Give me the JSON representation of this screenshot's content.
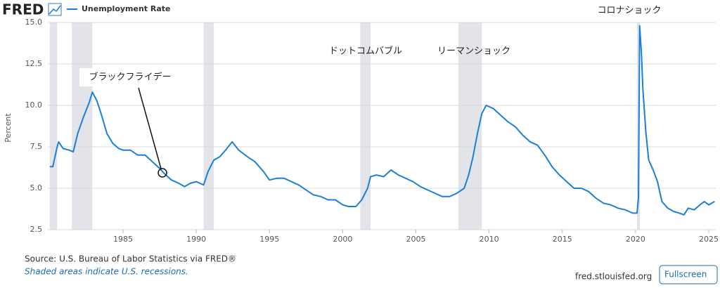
{
  "header": {
    "logo": "FRED"
  },
  "chart_data": {
    "type": "line",
    "y_label": "Percent",
    "series": [
      {
        "name": "Unemployment Rate",
        "color": "#1c7fd8",
        "x": [
          1980.0,
          1980.2,
          1980.5,
          1980.6,
          1980.9,
          1981.3,
          1981.6,
          1981.9,
          1982.3,
          1982.7,
          1982.9,
          1983.2,
          1983.5,
          1983.9,
          1984.3,
          1984.7,
          1985.0,
          1985.5,
          1986.0,
          1986.5,
          1987.0,
          1987.5,
          1987.8,
          1988.3,
          1988.8,
          1989.2,
          1989.6,
          1990.0,
          1990.5,
          1990.8,
          1991.2,
          1991.6,
          1992.0,
          1992.45,
          1992.9,
          1993.5,
          1994.0,
          1994.6,
          1995.0,
          1995.5,
          1996.0,
          1996.5,
          1997.0,
          1997.5,
          1998.0,
          1998.5,
          1999.0,
          1999.5,
          2000.0,
          2000.4,
          2000.9,
          2001.3,
          2001.7,
          2001.9,
          2002.3,
          2002.8,
          2003.3,
          2003.8,
          2004.3,
          2004.8,
          2005.3,
          2005.8,
          2006.3,
          2006.8,
          2007.3,
          2007.8,
          2008.3,
          2008.6,
          2008.9,
          2009.2,
          2009.5,
          2009.8,
          2010.3,
          2010.8,
          2011.3,
          2011.8,
          2012.3,
          2012.8,
          2013.3,
          2013.8,
          2014.3,
          2014.8,
          2015.3,
          2015.8,
          2016.3,
          2016.8,
          2017.3,
          2017.8,
          2018.3,
          2018.8,
          2019.3,
          2019.8,
          2020.1,
          2020.2,
          2020.28,
          2020.4,
          2020.5,
          2020.7,
          2020.9,
          2021.2,
          2021.5,
          2021.8,
          2022.2,
          2022.6,
          2023.0,
          2023.3,
          2023.6,
          2024.0,
          2024.4,
          2024.7,
          2025.0,
          2025.4
        ],
        "values": [
          6.3,
          6.3,
          7.5,
          7.8,
          7.4,
          7.3,
          7.2,
          8.3,
          9.3,
          10.2,
          10.8,
          10.3,
          9.5,
          8.3,
          7.7,
          7.4,
          7.3,
          7.3,
          7.0,
          7.0,
          6.6,
          6.2,
          5.9,
          5.5,
          5.3,
          5.1,
          5.3,
          5.4,
          5.2,
          6.0,
          6.7,
          6.9,
          7.3,
          7.8,
          7.3,
          6.9,
          6.6,
          6.0,
          5.5,
          5.6,
          5.6,
          5.4,
          5.2,
          4.9,
          4.6,
          4.5,
          4.3,
          4.3,
          4.0,
          3.9,
          3.9,
          4.3,
          5.0,
          5.7,
          5.8,
          5.7,
          6.1,
          5.8,
          5.6,
          5.4,
          5.1,
          4.9,
          4.7,
          4.5,
          4.5,
          4.7,
          5.0,
          5.8,
          6.9,
          8.3,
          9.5,
          10.0,
          9.8,
          9.4,
          9.0,
          8.7,
          8.2,
          7.8,
          7.6,
          7.0,
          6.3,
          5.8,
          5.4,
          5.0,
          5.0,
          4.8,
          4.4,
          4.1,
          4.0,
          3.8,
          3.7,
          3.5,
          3.5,
          4.4,
          14.8,
          13.2,
          11.0,
          8.4,
          6.7,
          6.1,
          5.4,
          4.2,
          3.8,
          3.6,
          3.5,
          3.4,
          3.8,
          3.7,
          4.0,
          4.2,
          4.0,
          4.2
        ]
      }
    ],
    "recessions": [
      [
        1980.0,
        1980.5
      ],
      [
        1981.5,
        1982.9
      ],
      [
        1990.5,
        1991.2
      ],
      [
        2001.2,
        2001.9
      ],
      [
        2007.9,
        2009.5
      ],
      [
        2020.1,
        2020.3
      ]
    ],
    "recession_color": "#e2e4ea",
    "xlim": [
      1979.86,
      2025.48
    ],
    "xticks": [
      1985,
      1990,
      1995,
      2000,
      2005,
      2010,
      2015,
      2020,
      2025
    ],
    "ylim": [
      2.5,
      15.0
    ],
    "yticks": [
      {
        "value": 2.5,
        "label": "2.5"
      },
      {
        "value": 5.0,
        "label": "5.0"
      },
      {
        "value": 7.5,
        "label": "7.5"
      },
      {
        "value": 10.0,
        "label": "10.0"
      },
      {
        "value": 12.5,
        "label": "12.5"
      },
      {
        "value": 15.0,
        "label": "15.0"
      }
    ],
    "grid": true,
    "annotations": [
      "ブラックフライデー",
      "ドットコムバブル",
      "リーマンショック",
      "コロナショック"
    ]
  },
  "footer": {
    "source": "Source: U.S. Bureau of Labor Statistics via FRED®",
    "note": "Shaded areas indicate U.S. recessions.",
    "site": "fred.stlouisfed.org",
    "button": "Fullscreen"
  }
}
